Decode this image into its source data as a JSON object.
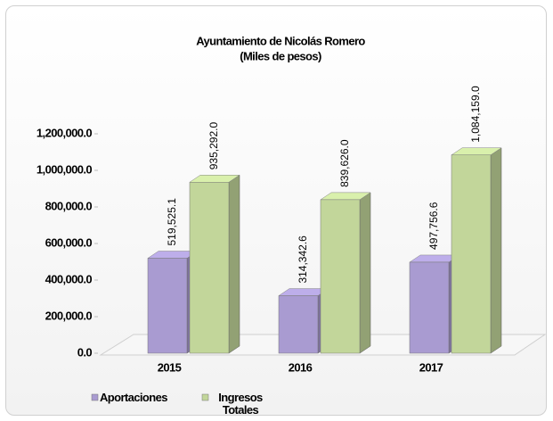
{
  "chart_data": {
    "type": "bar3d",
    "title": "Ayuntamiento de Nicolás Romero",
    "subtitle": "(Miles de pesos)",
    "categories": [
      "2015",
      "2016",
      "2017"
    ],
    "series": [
      {
        "name": "Aportaciones",
        "color": "#a99bd1",
        "values": [
          519525.1,
          314342.6,
          497756.6
        ],
        "value_labels": [
          "519,525.1",
          "314,342.6",
          "497,756.6"
        ]
      },
      {
        "name": "Ingresos Totales",
        "color": "#c2d69a",
        "values": [
          935292.0,
          839626.0,
          1084159.0
        ],
        "value_labels": [
          "935,292.0",
          "839,626.0",
          "1,084,159.0"
        ]
      }
    ],
    "ylim": [
      0,
      1200000
    ],
    "yticks": [
      {
        "value": 0,
        "label": "0.0"
      },
      {
        "value": 200000,
        "label": "200,000.0"
      },
      {
        "value": 400000,
        "label": "400,000.0"
      },
      {
        "value": 600000,
        "label": "600,000.0"
      },
      {
        "value": 800000,
        "label": "800,000.0"
      },
      {
        "value": 1000000,
        "label": "1,000,000.0"
      },
      {
        "value": 1200000,
        "label": "1,200,000.0"
      }
    ],
    "grid": false
  }
}
